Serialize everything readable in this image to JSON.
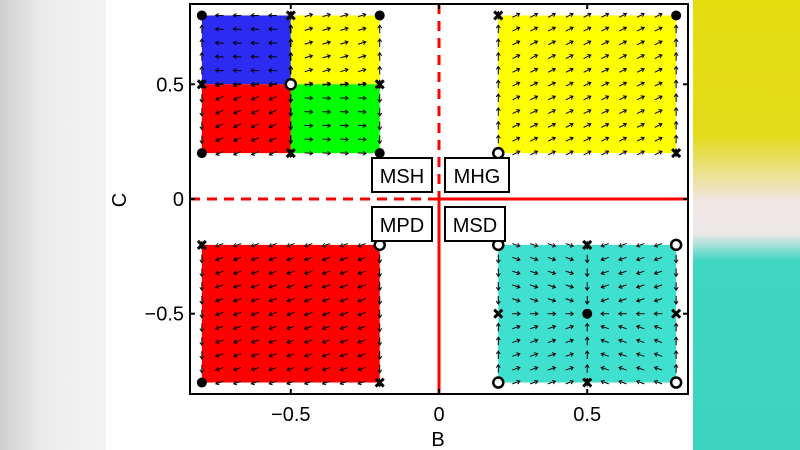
{
  "chart_data": {
    "type": "scatter",
    "xlabel": "B",
    "ylabel": "C",
    "xlim": [
      -0.84,
      0.84
    ],
    "ylim": [
      -0.85,
      0.85
    ],
    "grid": false,
    "xticks": [
      {
        "value": -0.5,
        "label": "−0.5"
      },
      {
        "value": 0,
        "label": "0"
      },
      {
        "value": 0.5,
        "label": "0.5"
      }
    ],
    "yticks": [
      {
        "value": 0.5,
        "label": "0.5"
      },
      {
        "value": 0,
        "label": "0"
      },
      {
        "value": -0.5,
        "label": "−0.5"
      }
    ],
    "regions": [
      {
        "b": [
          -0.8,
          -0.5
        ],
        "c": [
          0.5,
          0.8
        ],
        "color": "#2b2bf2"
      },
      {
        "b": [
          -0.8,
          -0.5
        ],
        "c": [
          0.2,
          0.5
        ],
        "color": "#ff0000"
      },
      {
        "b": [
          -0.5,
          -0.2
        ],
        "c": [
          0.5,
          0.8
        ],
        "color": "#ffff00"
      },
      {
        "b": [
          -0.5,
          -0.2
        ],
        "c": [
          0.2,
          0.5
        ],
        "color": "#00ff00"
      },
      {
        "b": [
          0.2,
          0.8
        ],
        "c": [
          0.2,
          0.8
        ],
        "color": "#ffff00"
      },
      {
        "b": [
          -0.8,
          -0.2
        ],
        "c": [
          -0.8,
          -0.2
        ],
        "color": "#ff0000"
      },
      {
        "b": [
          0.2,
          0.8
        ],
        "c": [
          -0.8,
          -0.2
        ],
        "color": "#40e0d0"
      }
    ],
    "fixed_points": [
      {
        "b": -0.8,
        "c": 0.8,
        "marker": "dot"
      },
      {
        "b": -0.5,
        "c": 0.8,
        "marker": "cross"
      },
      {
        "b": -0.2,
        "c": 0.8,
        "marker": "dot"
      },
      {
        "b": -0.8,
        "c": 0.5,
        "marker": "cross"
      },
      {
        "b": -0.5,
        "c": 0.5,
        "marker": "circle"
      },
      {
        "b": -0.2,
        "c": 0.5,
        "marker": "cross"
      },
      {
        "b": -0.8,
        "c": 0.2,
        "marker": "dot"
      },
      {
        "b": -0.5,
        "c": 0.2,
        "marker": "cross"
      },
      {
        "b": -0.2,
        "c": 0.2,
        "marker": "dot"
      },
      {
        "b": 0.2,
        "c": 0.8,
        "marker": "cross"
      },
      {
        "b": 0.8,
        "c": 0.8,
        "marker": "dot"
      },
      {
        "b": 0.2,
        "c": 0.2,
        "marker": "circle"
      },
      {
        "b": 0.8,
        "c": 0.2,
        "marker": "cross"
      },
      {
        "b": -0.8,
        "c": -0.2,
        "marker": "cross"
      },
      {
        "b": -0.2,
        "c": -0.2,
        "marker": "circle"
      },
      {
        "b": -0.8,
        "c": -0.8,
        "marker": "dot"
      },
      {
        "b": -0.2,
        "c": -0.8,
        "marker": "cross"
      },
      {
        "b": 0.2,
        "c": -0.2,
        "marker": "circle"
      },
      {
        "b": 0.5,
        "c": -0.2,
        "marker": "cross"
      },
      {
        "b": 0.8,
        "c": -0.2,
        "marker": "circle"
      },
      {
        "b": 0.2,
        "c": -0.5,
        "marker": "cross"
      },
      {
        "b": 0.5,
        "c": -0.5,
        "marker": "dot"
      },
      {
        "b": 0.8,
        "c": -0.5,
        "marker": "cross"
      },
      {
        "b": 0.2,
        "c": -0.8,
        "marker": "circle"
      },
      {
        "b": 0.5,
        "c": -0.8,
        "marker": "cross"
      },
      {
        "b": 0.8,
        "c": -0.8,
        "marker": "circle"
      }
    ],
    "reference_lines": {
      "color": "#ff0000"
    },
    "region_labels": {
      "msh": "MSH",
      "mhg": "MHG",
      "mpd": "MPD",
      "msd": "MSD"
    }
  }
}
